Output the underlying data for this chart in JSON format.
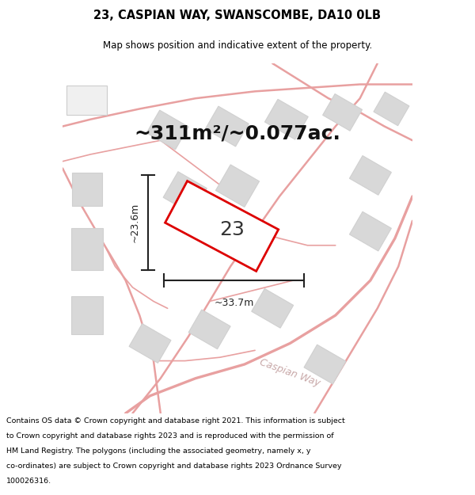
{
  "title": "23, CASPIAN WAY, SWANSCOMBE, DA10 0LB",
  "subtitle": "Map shows position and indicative extent of the property.",
  "area_text": "~311m²/~0.077ac.",
  "number_label": "23",
  "dim_width": "~33.7m",
  "dim_height": "~23.6m",
  "road_label": "Caspian Way",
  "footer_lines": [
    "Contains OS data © Crown copyright and database right 2021. This information is subject",
    "to Crown copyright and database rights 2023 and is reproduced with the permission of",
    "HM Land Registry. The polygons (including the associated geometry, namely x, y",
    "co-ordinates) are subject to Crown copyright and database rights 2023 Ordnance Survey",
    "100026316."
  ],
  "map_bg": "#f8f8f8",
  "road_color": "#e8a0a0",
  "road_lw": 1.2,
  "building_color": "#d8d8d8",
  "building_edge": "#d0d0d0",
  "plot_fill": "#ffffff",
  "plot_edge": "#dd0000",
  "plot_edge_lw": 2.0,
  "dim_color": "#222222",
  "title_fontsize": 10.5,
  "subtitle_fontsize": 8.5,
  "area_fontsize": 18,
  "number_fontsize": 18,
  "dim_fontsize": 9,
  "footer_fontsize": 6.8,
  "road_label_fontsize": 9,
  "road_label_color": "#c8a8a8",
  "road_label_rotation": -20
}
